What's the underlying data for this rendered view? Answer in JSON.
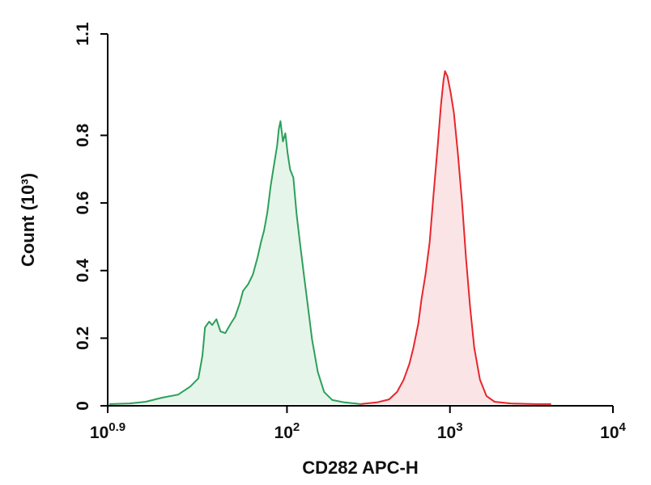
{
  "chart_data": {
    "type": "line",
    "x_label": "CD282 APC-H",
    "y_label": "Count (10³)",
    "x_scale": "log",
    "xlim": [
      7.943,
      10000
    ],
    "xticks": [
      {
        "value": 7.943,
        "label": "10",
        "exponent": "0.9"
      },
      {
        "value": 100,
        "label": "10",
        "exponent": "2"
      },
      {
        "value": 1000,
        "label": "10",
        "exponent": "3"
      },
      {
        "value": 10000,
        "label": "10",
        "exponent": "4"
      }
    ],
    "ylim": [
      0,
      1.1
    ],
    "yticks": [
      0,
      0.2,
      0.4,
      0.6,
      0.8,
      1.1
    ],
    "filled": true,
    "series": [
      {
        "color": "#2ca05a",
        "fill": "#e6f5ea",
        "x": [
          8.13,
          10.8,
          13.6,
          17.1,
          21.5,
          25.5,
          28.6,
          30.3,
          31.4,
          33.3,
          34.8,
          36.9,
          39.1,
          41.8,
          45.3,
          48.0,
          51.4,
          53.8,
          57.7,
          61.8,
          66.1,
          69.2,
          72.4,
          75.9,
          79.4,
          83.2,
          87.1,
          89.1,
          91.2,
          94.4,
          97.7,
          101,
          104.5,
          109.4,
          114.6,
          120,
          127,
          134.6,
          142.6,
          154.5,
          169,
          189.7,
          225.4,
          283
        ],
        "values": [
          0.005,
          0.007,
          0.012,
          0.024,
          0.033,
          0.057,
          0.081,
          0.148,
          0.232,
          0.249,
          0.239,
          0.256,
          0.22,
          0.215,
          0.244,
          0.263,
          0.304,
          0.34,
          0.359,
          0.388,
          0.44,
          0.483,
          0.519,
          0.574,
          0.651,
          0.711,
          0.77,
          0.818,
          0.842,
          0.782,
          0.806,
          0.746,
          0.699,
          0.675,
          0.567,
          0.483,
          0.388,
          0.292,
          0.196,
          0.1,
          0.041,
          0.017,
          0.01,
          0.005
        ]
      },
      {
        "color": "#e8262c",
        "fill": "#fbe4e6",
        "x": [
          283,
          356,
          423,
          474,
          520,
          564,
          597,
          640,
          669,
          708,
          750,
          794,
          841,
          881,
          912,
          933,
          966,
          1010,
          1057,
          1119,
          1186,
          1256,
          1330,
          1409,
          1528,
          1675,
          1877,
          2360,
          3326,
          4178
        ],
        "values": [
          0.005,
          0.01,
          0.019,
          0.041,
          0.077,
          0.124,
          0.172,
          0.244,
          0.316,
          0.388,
          0.483,
          0.627,
          0.77,
          0.89,
          0.962,
          0.99,
          0.974,
          0.926,
          0.866,
          0.746,
          0.603,
          0.435,
          0.292,
          0.172,
          0.077,
          0.029,
          0.012,
          0.007,
          0.005,
          0.005
        ]
      }
    ]
  }
}
